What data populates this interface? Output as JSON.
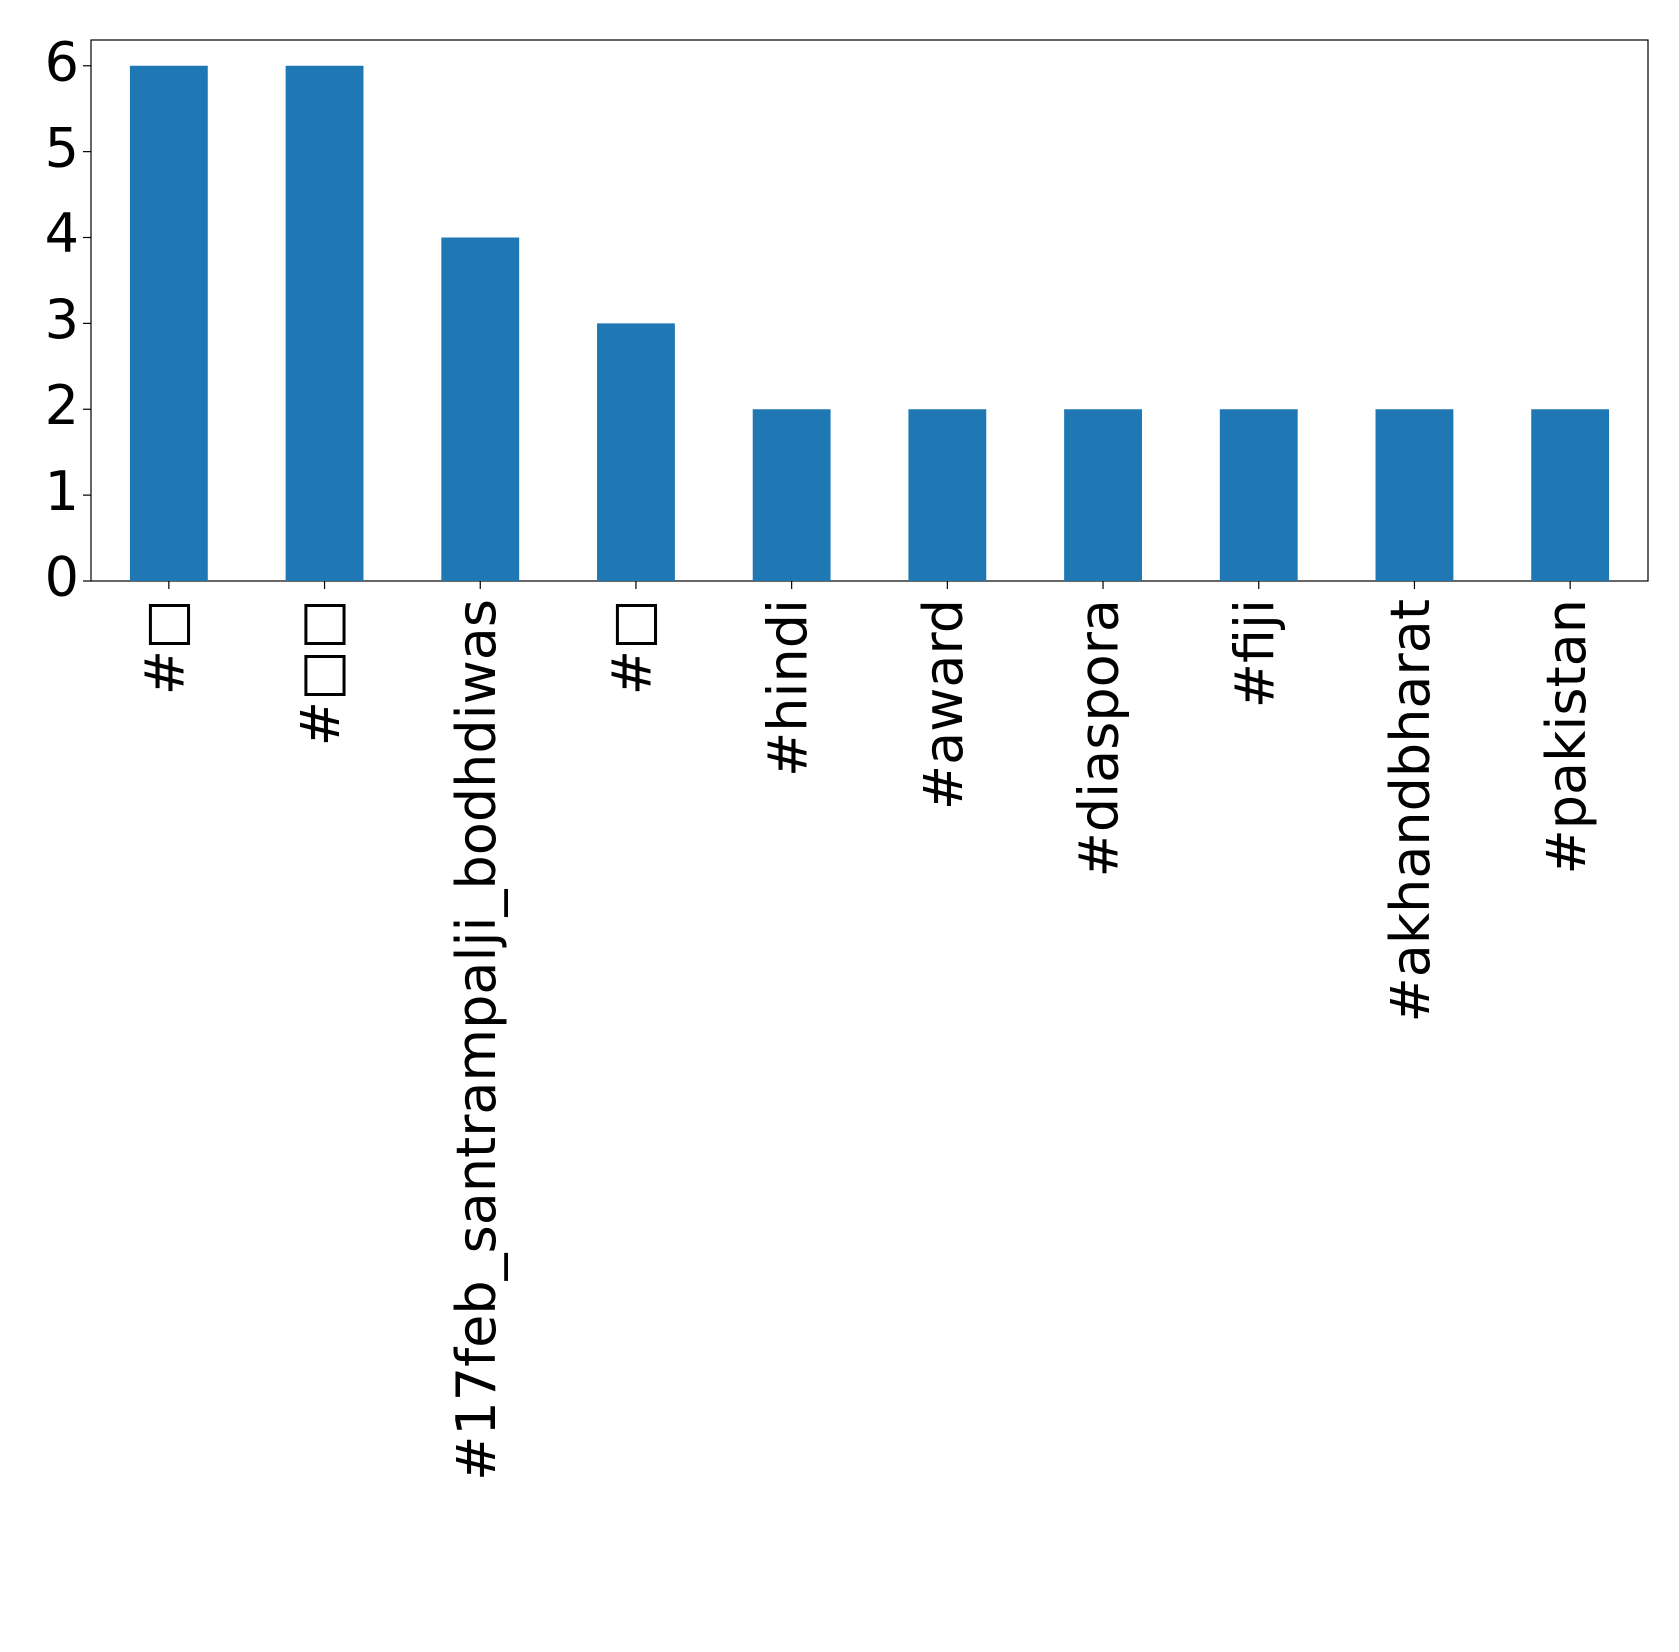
{
  "chart_data": {
    "type": "bar",
    "categories": [
      "#□",
      "#□□",
      "#17feb_santrampalji_bodhdiwas",
      "#□",
      "#hindi",
      "#award",
      "#diaspora",
      "#fiji",
      "#akhandbharat",
      "#pakistan"
    ],
    "values": [
      6,
      6,
      4,
      3,
      2,
      2,
      2,
      2,
      2,
      2
    ],
    "color": "#1f77b4",
    "ylim": [
      0,
      6.3
    ],
    "yticks": [
      0,
      1,
      2,
      3,
      4,
      5,
      6
    ],
    "grid": false
  }
}
